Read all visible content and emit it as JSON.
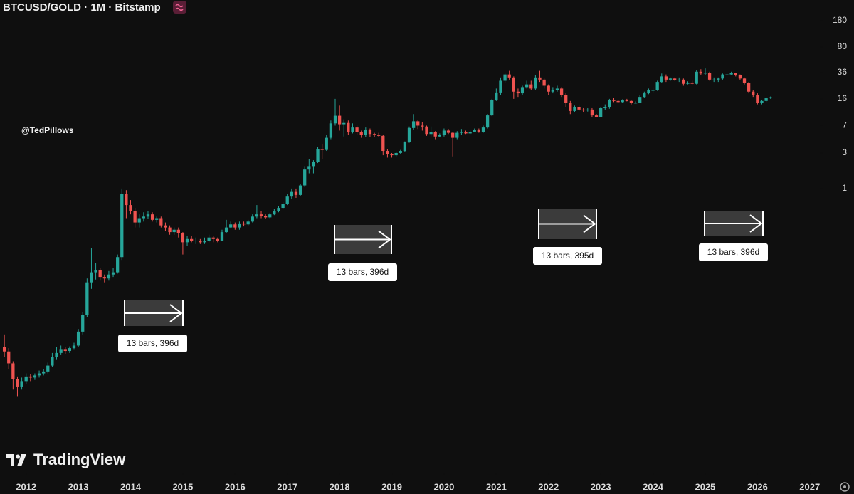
{
  "chart_data": {
    "type": "candlestick",
    "title": "BTCUSD/GOLD · 1M · Bitstamp",
    "watermark": "@TedPillows",
    "logo": "TradingView",
    "up_color": "#26a69a",
    "down_color": "#ef5350",
    "log_scale": true,
    "ylim": [
      0.00015,
      340
    ],
    "yticks": [
      1,
      3,
      7,
      16,
      36,
      80,
      180
    ],
    "xlim": [
      "2011-07",
      "2027-03"
    ],
    "xticks": [
      "2012",
      "2013",
      "2014",
      "2015",
      "2016",
      "2017",
      "2018",
      "2019",
      "2020",
      "2021",
      "2022",
      "2023",
      "2024",
      "2025",
      "2026",
      "2027"
    ],
    "annotations": [
      "13 bars, 396d",
      "13 bars, 396d",
      "13 bars, 395d",
      "13 bars, 396d"
    ],
    "x": [
      "2011-08",
      "2011-09",
      "2011-10",
      "2011-11",
      "2011-12",
      "2012-01",
      "2012-02",
      "2012-03",
      "2012-04",
      "2012-05",
      "2012-06",
      "2012-07",
      "2012-08",
      "2012-09",
      "2012-10",
      "2012-11",
      "2012-12",
      "2013-01",
      "2013-02",
      "2013-03",
      "2013-04",
      "2013-05",
      "2013-06",
      "2013-07",
      "2013-08",
      "2013-09",
      "2013-10",
      "2013-11",
      "2013-12",
      "2014-01",
      "2014-02",
      "2014-03",
      "2014-04",
      "2014-05",
      "2014-06",
      "2014-07",
      "2014-08",
      "2014-09",
      "2014-10",
      "2014-11",
      "2014-12",
      "2015-01",
      "2015-02",
      "2015-03",
      "2015-04",
      "2015-05",
      "2015-06",
      "2015-07",
      "2015-08",
      "2015-09",
      "2015-10",
      "2015-11",
      "2015-12",
      "2016-01",
      "2016-02",
      "2016-03",
      "2016-04",
      "2016-05",
      "2016-06",
      "2016-07",
      "2016-08",
      "2016-09",
      "2016-10",
      "2016-11",
      "2016-12",
      "2017-01",
      "2017-02",
      "2017-03",
      "2017-04",
      "2017-05",
      "2017-06",
      "2017-07",
      "2017-08",
      "2017-09",
      "2017-10",
      "2017-11",
      "2017-12",
      "2018-01",
      "2018-02",
      "2018-03",
      "2018-04",
      "2018-05",
      "2018-06",
      "2018-07",
      "2018-08",
      "2018-09",
      "2018-10",
      "2018-11",
      "2018-12",
      "2019-01",
      "2019-02",
      "2019-03",
      "2019-04",
      "2019-05",
      "2019-06",
      "2019-07",
      "2019-08",
      "2019-09",
      "2019-10",
      "2019-11",
      "2019-12",
      "2020-01",
      "2020-02",
      "2020-03",
      "2020-04",
      "2020-05",
      "2020-06",
      "2020-07",
      "2020-08",
      "2020-09",
      "2020-10",
      "2020-11",
      "2020-12",
      "2021-01",
      "2021-02",
      "2021-03",
      "2021-04",
      "2021-05",
      "2021-06",
      "2021-07",
      "2021-08",
      "2021-09",
      "2021-10",
      "2021-11",
      "2021-12",
      "2022-01",
      "2022-02",
      "2022-03",
      "2022-04",
      "2022-05",
      "2022-06",
      "2022-07",
      "2022-08",
      "2022-09",
      "2022-10",
      "2022-11",
      "2022-12",
      "2023-01",
      "2023-02",
      "2023-03",
      "2023-04",
      "2023-05",
      "2023-06",
      "2023-07",
      "2023-08",
      "2023-09",
      "2023-10",
      "2023-11",
      "2023-12",
      "2024-01",
      "2024-02",
      "2024-03",
      "2024-04",
      "2024-05",
      "2024-06",
      "2024-07",
      "2024-08",
      "2024-09",
      "2024-10",
      "2024-11",
      "2024-12",
      "2025-01",
      "2025-02",
      "2025-03",
      "2025-04",
      "2025-05",
      "2025-06",
      "2025-07",
      "2025-08",
      "2025-09",
      "2025-10",
      "2025-11",
      "2025-12",
      "2026-01",
      "2026-02",
      "2026-03",
      "2026-04"
    ],
    "open": [
      0.0075,
      0.0065,
      0.0045,
      0.0028,
      0.0022,
      0.0026,
      0.003,
      0.0029,
      0.0031,
      0.0033,
      0.0035,
      0.0042,
      0.0055,
      0.0062,
      0.007,
      0.0066,
      0.0072,
      0.0078,
      0.012,
      0.02,
      0.055,
      0.075,
      0.08,
      0.065,
      0.062,
      0.07,
      0.075,
      0.12,
      0.85,
      0.6,
      0.5,
      0.35,
      0.4,
      0.42,
      0.45,
      0.38,
      0.4,
      0.32,
      0.3,
      0.26,
      0.28,
      0.25,
      0.19,
      0.21,
      0.2,
      0.2,
      0.19,
      0.2,
      0.22,
      0.21,
      0.2,
      0.26,
      0.3,
      0.33,
      0.3,
      0.34,
      0.33,
      0.36,
      0.42,
      0.45,
      0.43,
      0.41,
      0.45,
      0.5,
      0.55,
      0.62,
      0.78,
      0.9,
      0.82,
      1.1,
      1.8,
      2.0,
      2.3,
      3.4,
      3.3,
      4.8,
      7.5,
      9.5,
      7.3,
      7.6,
      5.7,
      6.6,
      5.8,
      5.2,
      6.2,
      5.4,
      5.3,
      5.1,
      3.2,
      2.9,
      2.8,
      3.0,
      3.2,
      4.2,
      6.5,
      8.0,
      7.0,
      6.8,
      5.4,
      5.8,
      5.0,
      5.2,
      6.0,
      5.6,
      4.8,
      5.6,
      5.8,
      5.5,
      5.8,
      6.2,
      5.8,
      6.6,
      9.6,
      15.5,
      19.5,
      28,
      34,
      31,
      20,
      19,
      23,
      25,
      22,
      31,
      29,
      24,
      20,
      21,
      22,
      18,
      14,
      11,
      12.5,
      11.5,
      11.2,
      11.5,
      9.6,
      9.2,
      12,
      12.5,
      15.5,
      15,
      14.5,
      15.3,
      15,
      14,
      14.2,
      17,
      19,
      21,
      21,
      27,
      32,
      29,
      30,
      28.5,
      29,
      25.5,
      26.5,
      25.5,
      37,
      35,
      36,
      29,
      29,
      30,
      34,
      34,
      36,
      33,
      30,
      26,
      20,
      18,
      14,
      15,
      16.3
    ],
    "high": [
      0.011,
      0.0072,
      0.0048,
      0.003,
      0.0029,
      0.0033,
      0.0032,
      0.0033,
      0.0036,
      0.0038,
      0.0046,
      0.0062,
      0.0075,
      0.0078,
      0.0074,
      0.0076,
      0.0085,
      0.013,
      0.022,
      0.062,
      0.16,
      0.1,
      0.085,
      0.07,
      0.078,
      0.085,
      0.13,
      1.0,
      0.95,
      0.7,
      0.55,
      0.45,
      0.48,
      0.5,
      0.48,
      0.42,
      0.42,
      0.35,
      0.32,
      0.3,
      0.3,
      0.26,
      0.23,
      0.23,
      0.22,
      0.21,
      0.22,
      0.24,
      0.23,
      0.22,
      0.28,
      0.38,
      0.36,
      0.35,
      0.36,
      0.36,
      0.38,
      0.45,
      0.6,
      0.5,
      0.45,
      0.47,
      0.53,
      0.58,
      0.66,
      0.85,
      1.0,
      1.0,
      1.15,
      2.0,
      2.5,
      2.4,
      3.6,
      4.0,
      5.2,
      8.2,
      16,
      13,
      8.5,
      8.2,
      7.5,
      7.0,
      6.0,
      6.6,
      6.4,
      5.6,
      5.6,
      5.3,
      3.4,
      3.0,
      3.1,
      3.3,
      4.3,
      6.8,
      10,
      8.3,
      7.8,
      7.0,
      6.8,
      5.9,
      5.5,
      6.4,
      6.3,
      5.8,
      5.9,
      6.3,
      6.0,
      6.0,
      6.4,
      6.4,
      7.0,
      10,
      16,
      22,
      31,
      36,
      38,
      32,
      22,
      24,
      28,
      28,
      33,
      38,
      30,
      25,
      23,
      24,
      23,
      19,
      15,
      13,
      13.5,
      12,
      12,
      12,
      10,
      12.5,
      13.5,
      16,
      16.5,
      15.5,
      15.8,
      16,
      15.2,
      14.8,
      18,
      20,
      22,
      23,
      28,
      35,
      34,
      31,
      31,
      31,
      30,
      27.5,
      28,
      39,
      40,
      41,
      37,
      31,
      31,
      35,
      35,
      37,
      36,
      34,
      31,
      27,
      21,
      19,
      15.5,
      16.8,
      17.2
    ],
    "low": [
      0.0055,
      0.0038,
      0.002,
      0.0016,
      0.002,
      0.0024,
      0.0026,
      0.0027,
      0.0029,
      0.0031,
      0.0033,
      0.004,
      0.005,
      0.0058,
      0.006,
      0.0062,
      0.007,
      0.0075,
      0.011,
      0.019,
      0.045,
      0.06,
      0.058,
      0.055,
      0.058,
      0.065,
      0.072,
      0.11,
      0.4,
      0.45,
      0.3,
      0.3,
      0.36,
      0.39,
      0.36,
      0.35,
      0.3,
      0.27,
      0.24,
      0.24,
      0.22,
      0.13,
      0.17,
      0.19,
      0.18,
      0.18,
      0.18,
      0.19,
      0.19,
      0.19,
      0.2,
      0.25,
      0.29,
      0.28,
      0.28,
      0.31,
      0.32,
      0.35,
      0.4,
      0.4,
      0.39,
      0.4,
      0.44,
      0.48,
      0.53,
      0.6,
      0.72,
      0.75,
      0.8,
      1.05,
      1.6,
      1.6,
      2.2,
      2.5,
      3.2,
      4.6,
      7.0,
      6.0,
      5.0,
      5.2,
      5.5,
      5.3,
      4.8,
      4.9,
      4.9,
      4.9,
      4.9,
      2.8,
      2.6,
      2.6,
      2.7,
      2.9,
      3.1,
      4.1,
      6.2,
      6.3,
      6.0,
      5.1,
      5.0,
      4.6,
      4.9,
      5.0,
      5.4,
      2.7,
      4.6,
      5.3,
      5.4,
      5.4,
      5.7,
      5.6,
      5.6,
      6.4,
      9.4,
      15,
      18,
      26,
      29,
      16,
      17,
      18,
      22,
      21,
      21,
      27,
      22,
      18,
      19,
      20,
      17,
      12.5,
      10,
      10.5,
      11,
      10.5,
      10.8,
      9.0,
      9.0,
      9.0,
      11.5,
      11.8,
      14.5,
      14.2,
      14.3,
      14.8,
      13.5,
      13.8,
      14,
      16.5,
      18.5,
      19.5,
      20.5,
      26,
      27,
      28,
      28,
      27,
      24,
      25,
      25,
      25,
      33,
      33,
      28,
      27,
      27,
      29,
      33,
      33,
      32,
      29,
      25,
      19,
      17,
      13.5,
      13.5,
      14.5,
      16.0
    ],
    "close": [
      0.0065,
      0.0045,
      0.0028,
      0.0022,
      0.0026,
      0.003,
      0.0029,
      0.0031,
      0.0033,
      0.0035,
      0.0042,
      0.0055,
      0.0062,
      0.007,
      0.0066,
      0.0072,
      0.0078,
      0.012,
      0.02,
      0.055,
      0.075,
      0.08,
      0.065,
      0.062,
      0.07,
      0.075,
      0.12,
      0.85,
      0.6,
      0.5,
      0.35,
      0.4,
      0.42,
      0.45,
      0.38,
      0.4,
      0.32,
      0.3,
      0.26,
      0.28,
      0.25,
      0.19,
      0.21,
      0.2,
      0.2,
      0.19,
      0.2,
      0.22,
      0.21,
      0.2,
      0.26,
      0.3,
      0.33,
      0.3,
      0.34,
      0.33,
      0.36,
      0.42,
      0.45,
      0.43,
      0.41,
      0.45,
      0.5,
      0.55,
      0.62,
      0.78,
      0.9,
      0.82,
      1.1,
      1.8,
      2.0,
      2.3,
      3.4,
      3.3,
      4.8,
      7.5,
      9.5,
      7.3,
      7.6,
      5.7,
      6.6,
      5.8,
      5.2,
      6.2,
      5.4,
      5.3,
      5.1,
      3.2,
      2.9,
      2.8,
      3.0,
      3.2,
      4.2,
      6.5,
      8.0,
      7.0,
      6.8,
      5.4,
      5.8,
      5.0,
      5.2,
      6.0,
      5.6,
      4.8,
      5.6,
      5.8,
      5.5,
      5.8,
      6.2,
      5.8,
      6.6,
      9.6,
      15.5,
      19.5,
      28,
      34,
      31,
      20,
      19,
      23,
      25,
      22,
      31,
      29,
      24,
      20,
      21,
      22,
      18,
      14,
      11,
      12.5,
      11.5,
      11.2,
      11.5,
      9.6,
      9.2,
      12,
      12.5,
      15.5,
      15,
      14.5,
      15.3,
      15,
      14,
      14.2,
      17,
      19,
      21,
      21,
      27,
      32,
      29,
      30,
      28.5,
      29,
      25.5,
      26.5,
      25.5,
      37,
      35,
      36,
      29,
      29,
      30,
      34,
      34,
      36,
      33,
      30,
      26,
      20,
      18,
      14,
      15,
      16.3,
      16.8
    ]
  }
}
